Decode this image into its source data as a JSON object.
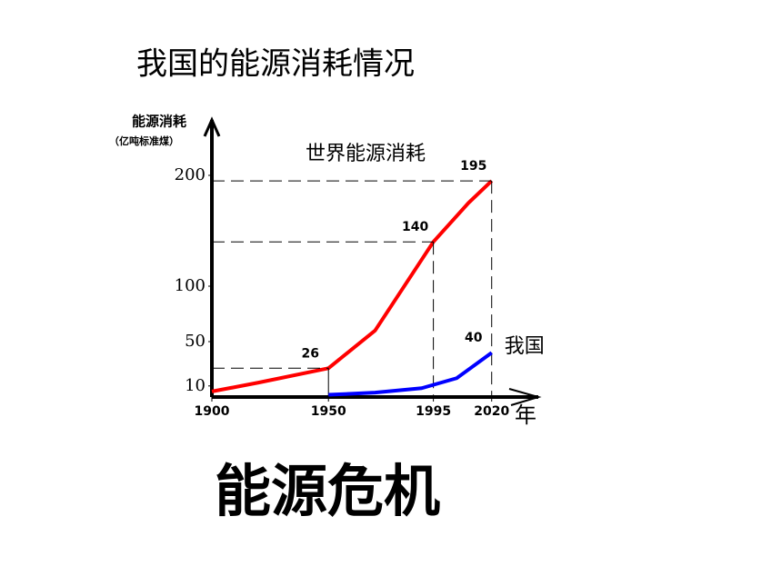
{
  "headline": "能源危机",
  "chart_data": {
    "type": "line",
    "title": "我国的能源消耗情况",
    "y_label": "能源消耗",
    "y_unit": "（亿吨标准煤）",
    "x_label": "年",
    "xlim": [
      1900,
      2040
    ],
    "xticks": [
      1900,
      1950,
      1995,
      2020
    ],
    "ylim": [
      0,
      250
    ],
    "yticks": [
      10,
      50,
      100,
      200
    ],
    "series": [
      {
        "name": "世界能源消耗",
        "color": "#ff0000",
        "x": [
          1900,
          1920,
          1950,
          1970,
          1995,
          2010,
          2020
        ],
        "values": [
          5,
          13,
          26,
          60,
          140,
          175,
          195
        ]
      },
      {
        "name": "我国",
        "color": "#0000ff",
        "x": [
          1950,
          1970,
          1990,
          2005,
          2020
        ],
        "values": [
          2,
          4,
          8,
          17,
          40
        ]
      }
    ]
  }
}
